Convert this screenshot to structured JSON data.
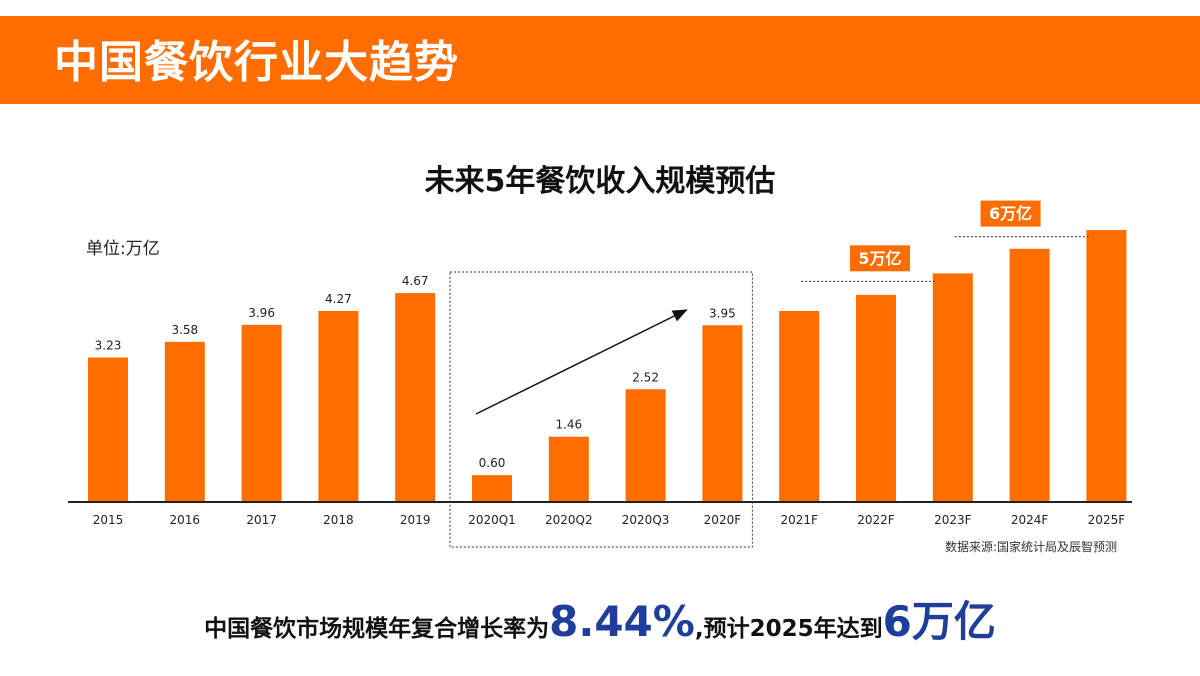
{
  "page": {
    "banner_title": "中国餐饮行业大趋势",
    "chart_title": "未来5年餐饮收入规模预估",
    "unit_label": "单位:万亿",
    "source": "数据来源:国家统计局及辰智预测",
    "summary": {
      "prefix": "中国餐饮市场规模年复合增长率为",
      "rate": "8.44%",
      "middle": ",预计2025年达到",
      "target": "6万亿"
    }
  },
  "colors": {
    "accent": "#ff6d00",
    "highlight": "#1f3d9a"
  },
  "chart_data": {
    "type": "bar",
    "title": "未来5年餐饮收入规模预估",
    "ylabel": "单位:万亿",
    "categories": [
      "2015",
      "2016",
      "2017",
      "2018",
      "2019",
      "2020Q1",
      "2020Q2",
      "2020Q3",
      "2020F",
      "2021F",
      "2022F",
      "2023F",
      "2024F",
      "2025F"
    ],
    "values": [
      3.23,
      3.58,
      3.96,
      4.27,
      4.67,
      0.6,
      1.46,
      2.52,
      3.95,
      4.27,
      4.63,
      5.11,
      5.66,
      6.08
    ],
    "labels": [
      "3.23",
      "3.58",
      "3.96",
      "4.27",
      "4.67",
      "0.60",
      "1.46",
      "2.52",
      "3.95",
      "",
      "",
      "",
      "",
      ""
    ],
    "ylim": [
      0,
      6.5
    ],
    "grid": false,
    "annotations": [
      {
        "text": "5万亿",
        "value": 5
      },
      {
        "text": "6万亿",
        "value": 6
      }
    ],
    "highlight_box": [
      "2020Q1",
      "2020F"
    ]
  }
}
